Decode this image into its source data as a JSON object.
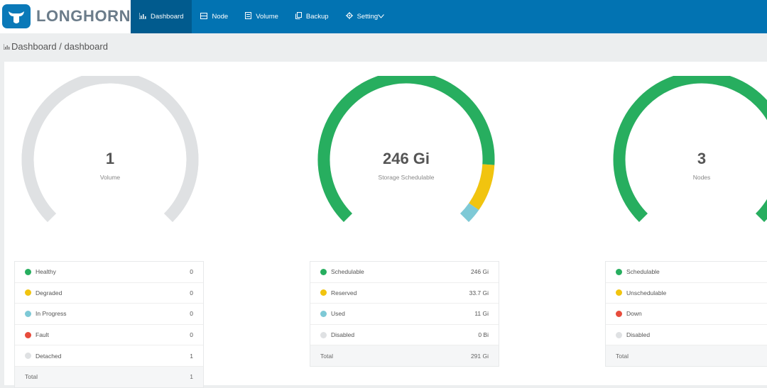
{
  "app": {
    "brand": "LONGHORN"
  },
  "nav": {
    "items": [
      {
        "label": "Dashboard",
        "icon": "bar-chart-icon",
        "active": true
      },
      {
        "label": "Node",
        "icon": "server-icon",
        "active": false
      },
      {
        "label": "Volume",
        "icon": "database-icon",
        "active": false
      },
      {
        "label": "Backup",
        "icon": "copy-icon",
        "active": false
      },
      {
        "label": "Setting",
        "icon": "gear-icon",
        "active": false
      }
    ]
  },
  "breadcrumb": {
    "root": "Dashboard",
    "separator": "/",
    "current": "dashboard"
  },
  "colors": {
    "healthy": "#27ae5f",
    "degraded": "#f1c40f",
    "in_progress": "#7ec9d6",
    "fault": "#e74c3c",
    "detached": "#dfe1e3",
    "header": "#0273b2"
  },
  "volume": {
    "value": "1",
    "label": "Volume",
    "rows": [
      {
        "label": "Healthy",
        "value": "0",
        "color": "#27ae5f"
      },
      {
        "label": "Degraded",
        "value": "0",
        "color": "#f1c40f"
      },
      {
        "label": "In Progress",
        "value": "0",
        "color": "#7ec9d6"
      },
      {
        "label": "Fault",
        "value": "0",
        "color": "#e74c3c"
      },
      {
        "label": "Detached",
        "value": "1",
        "color": "#dfe1e3"
      }
    ],
    "total_label": "Total",
    "total_value": "1",
    "segments": [
      {
        "name": "Detached",
        "value": 1,
        "color": "#dfe1e3"
      }
    ]
  },
  "storage": {
    "value": "246 Gi",
    "label": "Storage Schedulable",
    "rows": [
      {
        "label": "Schedulable",
        "value": "246 Gi",
        "color": "#27ae5f"
      },
      {
        "label": "Reserved",
        "value": "33.7 Gi",
        "color": "#f1c40f"
      },
      {
        "label": "Used",
        "value": "11 Gi",
        "color": "#7ec9d6"
      },
      {
        "label": "Disabled",
        "value": "0 Bi",
        "color": "#dfe1e3"
      }
    ],
    "total_label": "Total",
    "total_value": "291 Gi",
    "segments": [
      {
        "name": "Schedulable",
        "value": 246,
        "color": "#27ae5f"
      },
      {
        "name": "Reserved",
        "value": 33.7,
        "color": "#f1c40f"
      },
      {
        "name": "Used",
        "value": 11,
        "color": "#7ec9d6"
      }
    ]
  },
  "nodes": {
    "value": "3",
    "label": "Nodes",
    "rows": [
      {
        "label": "Schedulable",
        "color": "#27ae5f"
      },
      {
        "label": "Unschedulable",
        "color": "#f1c40f"
      },
      {
        "label": "Down",
        "color": "#e74c3c"
      },
      {
        "label": "Disabled",
        "color": "#dfe1e3"
      }
    ],
    "total_label": "Total",
    "segments": [
      {
        "name": "Schedulable",
        "value": 3,
        "color": "#27ae5f"
      }
    ]
  }
}
